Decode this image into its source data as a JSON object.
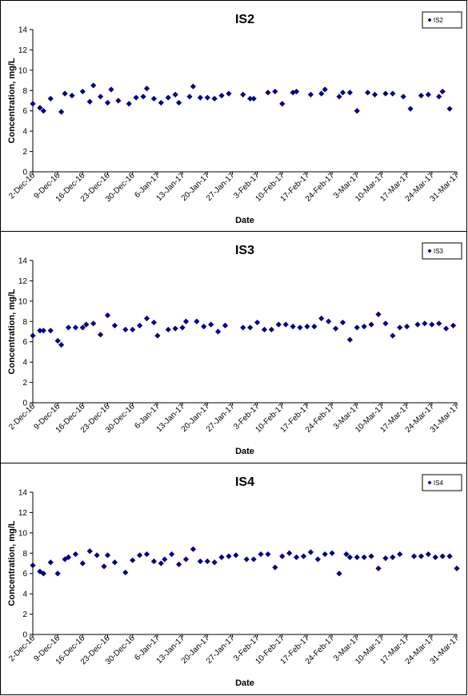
{
  "chart_data": [
    {
      "type": "scatter",
      "title": "IS2",
      "xlabel": "Date",
      "ylabel": "Concentration, mg/L",
      "ylim": [
        0,
        14
      ],
      "yticks": [
        0,
        2,
        4,
        6,
        8,
        10,
        12,
        14
      ],
      "xlim": [
        "2016-12-02",
        "2017-03-31"
      ],
      "xtick_labels": [
        "2-Dec-16",
        "9-Dec-16",
        "16-Dec-16",
        "23-Dec-16",
        "30-Dec-16",
        "6-Jan-17",
        "13-Jan-17",
        "20-Jan-17",
        "27-Jan-17",
        "3-Feb-17",
        "10-Feb-17",
        "17-Feb-17",
        "24-Feb-17",
        "3-Mar-17",
        "10-Mar-17",
        "17-Mar-17",
        "24-Mar-17",
        "31-Mar-17"
      ],
      "grid": false,
      "legend": "top-right",
      "marker_color": "#000080",
      "series": [
        {
          "name": "IS2",
          "x": [
            "2016-12-02",
            "2016-12-04",
            "2016-12-05",
            "2016-12-07",
            "2016-12-10",
            "2016-12-11",
            "2016-12-13",
            "2016-12-16",
            "2016-12-18",
            "2016-12-19",
            "2016-12-21",
            "2016-12-23",
            "2016-12-24",
            "2016-12-26",
            "2016-12-29",
            "2016-12-31",
            "2017-01-02",
            "2017-01-03",
            "2017-01-05",
            "2017-01-07",
            "2017-01-09",
            "2017-01-11",
            "2017-01-12",
            "2017-01-15",
            "2017-01-16",
            "2017-01-18",
            "2017-01-20",
            "2017-01-22",
            "2017-01-24",
            "2017-01-26",
            "2017-01-30",
            "2017-02-01",
            "2017-02-02",
            "2017-02-06",
            "2017-02-08",
            "2017-02-10",
            "2017-02-13",
            "2017-02-14",
            "2017-02-18",
            "2017-02-21",
            "2017-02-22",
            "2017-02-26",
            "2017-02-27",
            "2017-03-01",
            "2017-03-03",
            "2017-03-06",
            "2017-03-08",
            "2017-03-11",
            "2017-03-13",
            "2017-03-16",
            "2017-03-18",
            "2017-03-21",
            "2017-03-23",
            "2017-03-26",
            "2017-03-27",
            "2017-03-29"
          ],
          "y": [
            6.7,
            6.3,
            6.0,
            7.2,
            5.9,
            7.7,
            7.5,
            7.9,
            6.9,
            8.5,
            7.4,
            6.8,
            8.1,
            7.0,
            6.7,
            7.3,
            7.4,
            8.2,
            7.2,
            6.8,
            7.3,
            7.6,
            6.8,
            7.4,
            8.4,
            7.3,
            7.3,
            7.2,
            7.5,
            7.7,
            7.6,
            7.2,
            7.2,
            7.8,
            7.9,
            6.7,
            7.8,
            7.9,
            7.6,
            7.7,
            8.1,
            7.4,
            7.8,
            7.8,
            6.0,
            7.8,
            7.6,
            7.7,
            7.7,
            7.4,
            6.2,
            7.5,
            7.6,
            7.4,
            7.9,
            6.2
          ]
        }
      ]
    },
    {
      "type": "scatter",
      "title": "IS3",
      "xlabel": "Date",
      "ylabel": "Concentration, mg/L",
      "ylim": [
        0,
        14
      ],
      "yticks": [
        0,
        2,
        4,
        6,
        8,
        10,
        12,
        14
      ],
      "xlim": [
        "2016-12-02",
        "2017-03-31"
      ],
      "xtick_labels": [
        "2-Dec-16",
        "9-Dec-16",
        "16-Dec-16",
        "23-Dec-16",
        "30-Dec-16",
        "6-Jan-17",
        "13-Jan-17",
        "20-Jan-17",
        "27-Jan-17",
        "3-Feb-17",
        "10-Feb-17",
        "17-Feb-17",
        "24-Feb-17",
        "3-Mar-17",
        "10-Mar-17",
        "17-Mar-17",
        "24-Mar-17",
        "31-Mar-17"
      ],
      "grid": false,
      "legend": "top-right",
      "marker_color": "#000080",
      "series": [
        {
          "name": "IS3",
          "x": [
            "2016-12-02",
            "2016-12-04",
            "2016-12-05",
            "2016-12-07",
            "2016-12-09",
            "2016-12-10",
            "2016-12-12",
            "2016-12-14",
            "2016-12-16",
            "2016-12-17",
            "2016-12-19",
            "2016-12-21",
            "2016-12-23",
            "2016-12-25",
            "2016-12-28",
            "2016-12-30",
            "2017-01-01",
            "2017-01-03",
            "2017-01-05",
            "2017-01-06",
            "2017-01-09",
            "2017-01-11",
            "2017-01-13",
            "2017-01-14",
            "2017-01-17",
            "2017-01-19",
            "2017-01-21",
            "2017-01-23",
            "2017-01-25",
            "2017-01-30",
            "2017-02-01",
            "2017-02-03",
            "2017-02-05",
            "2017-02-07",
            "2017-02-09",
            "2017-02-11",
            "2017-02-13",
            "2017-02-15",
            "2017-02-17",
            "2017-02-19",
            "2017-02-21",
            "2017-02-23",
            "2017-02-25",
            "2017-02-27",
            "2017-03-01",
            "2017-03-03",
            "2017-03-05",
            "2017-03-07",
            "2017-03-09",
            "2017-03-11",
            "2017-03-13",
            "2017-03-15",
            "2017-03-17",
            "2017-03-20",
            "2017-03-22",
            "2017-03-24",
            "2017-03-26",
            "2017-03-28",
            "2017-03-30"
          ],
          "y": [
            6.6,
            7.1,
            7.1,
            7.1,
            6.1,
            5.7,
            7.4,
            7.4,
            7.4,
            7.7,
            7.8,
            6.7,
            8.6,
            7.6,
            7.2,
            7.2,
            7.6,
            8.3,
            7.9,
            6.6,
            7.2,
            7.3,
            7.4,
            8.0,
            8.0,
            7.5,
            7.7,
            7.0,
            7.6,
            7.4,
            7.4,
            7.9,
            7.2,
            7.2,
            7.7,
            7.7,
            7.5,
            7.4,
            7.5,
            7.5,
            8.3,
            8.0,
            7.3,
            7.9,
            6.2,
            7.4,
            7.5,
            7.7,
            8.7,
            7.8,
            6.6,
            7.4,
            7.5,
            7.7,
            7.8,
            7.7,
            7.8,
            7.3,
            7.6
          ]
        }
      ]
    },
    {
      "type": "scatter",
      "title": "IS4",
      "xlabel": "Date",
      "ylabel": "Concentration, mg/L",
      "ylim": [
        0,
        14
      ],
      "yticks": [
        0,
        2,
        4,
        6,
        8,
        10,
        12,
        14
      ],
      "xlim": [
        "2016-12-02",
        "2017-03-31"
      ],
      "xtick_labels": [
        "2-Dec-16",
        "9-Dec-16",
        "16-Dec-16",
        "23-Dec-16",
        "30-Dec-16",
        "6-Jan-17",
        "13-Jan-17",
        "20-Jan-17",
        "27-Jan-17",
        "3-Feb-17",
        "10-Feb-17",
        "17-Feb-17",
        "24-Feb-17",
        "3-Mar-17",
        "10-Mar-17",
        "17-Mar-17",
        "24-Mar-17",
        "31-Mar-17"
      ],
      "grid": false,
      "legend": "top-right",
      "marker_color": "#000080",
      "series": [
        {
          "name": "IS4",
          "x": [
            "2016-12-02",
            "2016-12-04",
            "2016-12-05",
            "2016-12-07",
            "2016-12-09",
            "2016-12-11",
            "2016-12-12",
            "2016-12-14",
            "2016-12-16",
            "2016-12-18",
            "2016-12-20",
            "2016-12-22",
            "2016-12-23",
            "2016-12-25",
            "2016-12-28",
            "2016-12-30",
            "2017-01-01",
            "2017-01-03",
            "2017-01-05",
            "2017-01-07",
            "2017-01-08",
            "2017-01-10",
            "2017-01-12",
            "2017-01-14",
            "2017-01-16",
            "2017-01-18",
            "2017-01-20",
            "2017-01-22",
            "2017-01-24",
            "2017-01-26",
            "2017-01-28",
            "2017-01-31",
            "2017-02-02",
            "2017-02-04",
            "2017-02-06",
            "2017-02-08",
            "2017-02-10",
            "2017-02-12",
            "2017-02-14",
            "2017-02-16",
            "2017-02-18",
            "2017-02-20",
            "2017-02-22",
            "2017-02-24",
            "2017-02-26",
            "2017-02-28",
            "2017-03-01",
            "2017-03-03",
            "2017-03-05",
            "2017-03-07",
            "2017-03-09",
            "2017-03-11",
            "2017-03-13",
            "2017-03-15",
            "2017-03-19",
            "2017-03-21",
            "2017-03-23",
            "2017-03-25",
            "2017-03-27",
            "2017-03-29",
            "2017-03-31"
          ],
          "y": [
            6.8,
            6.2,
            6.0,
            7.1,
            6.0,
            7.4,
            7.6,
            7.9,
            7.0,
            8.2,
            7.8,
            6.7,
            7.8,
            7.1,
            6.1,
            7.3,
            7.8,
            7.9,
            7.2,
            7.0,
            7.4,
            7.9,
            6.9,
            7.4,
            8.4,
            7.2,
            7.2,
            7.1,
            7.6,
            7.7,
            7.8,
            7.4,
            7.4,
            7.9,
            7.9,
            6.6,
            7.7,
            8.0,
            7.6,
            7.7,
            8.1,
            7.4,
            7.9,
            8.0,
            6.0,
            7.9,
            7.6,
            7.6,
            7.6,
            7.7,
            6.5,
            7.5,
            7.6,
            7.9,
            7.7,
            7.7,
            7.9,
            7.6,
            7.7,
            7.7,
            6.5
          ]
        }
      ]
    }
  ]
}
